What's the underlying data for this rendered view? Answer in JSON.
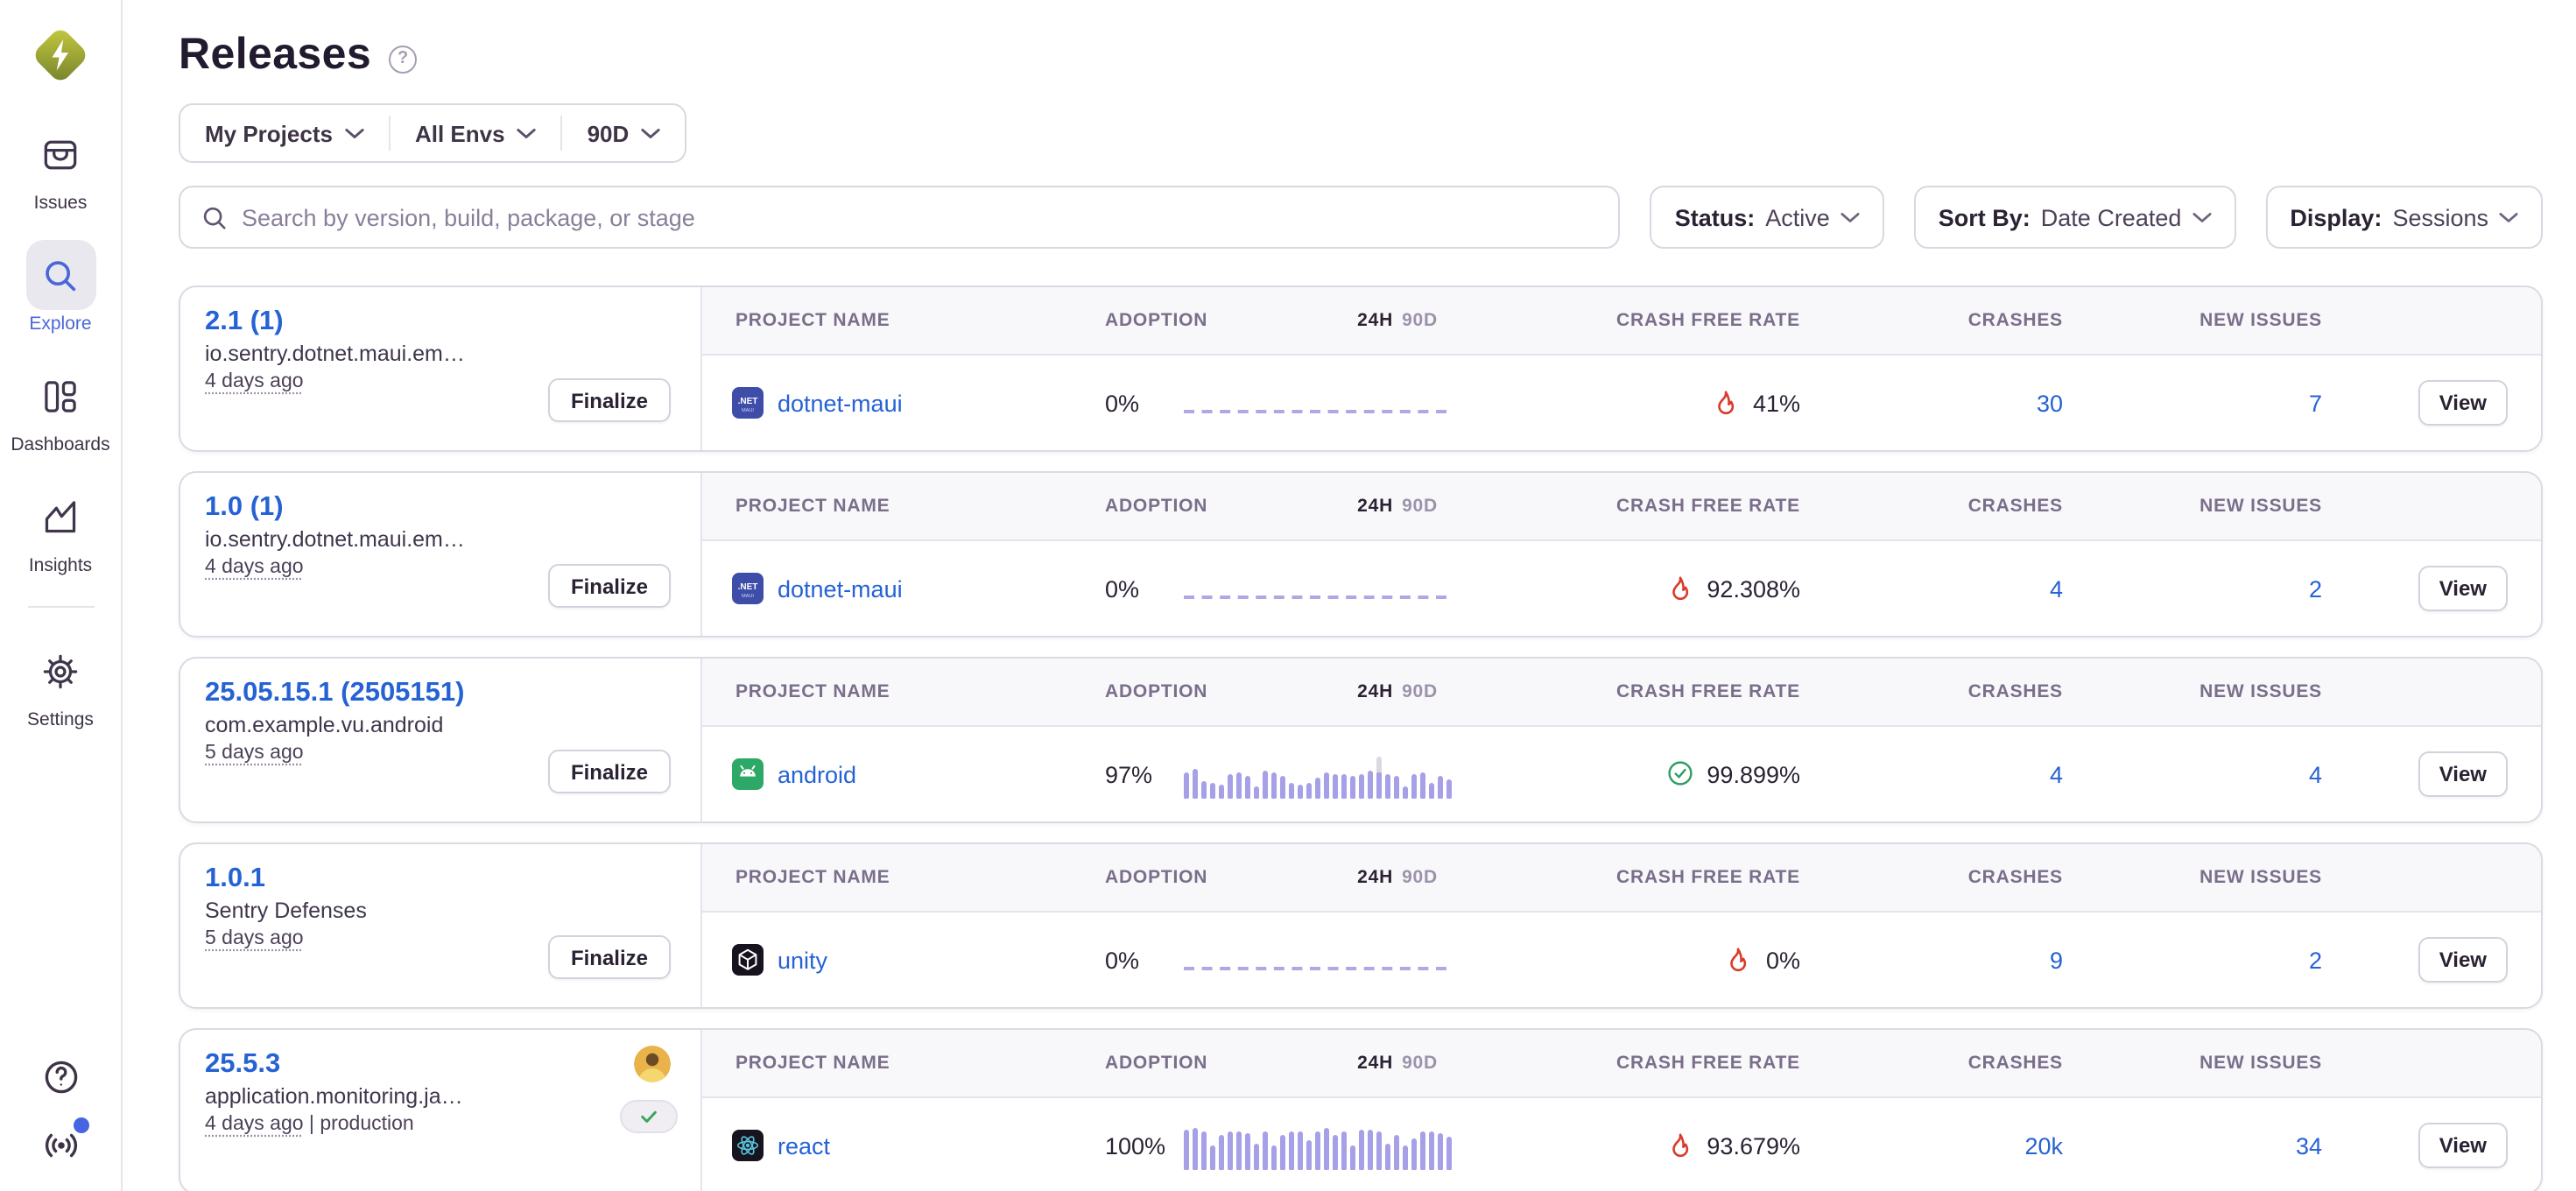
{
  "app": {
    "name": "Sentry",
    "logo_icon": "sentry-logo"
  },
  "sidebar": {
    "items": [
      {
        "label": "Issues",
        "icon": "issues-icon",
        "active": false
      },
      {
        "label": "Explore",
        "icon": "magnifier-icon",
        "active": true
      },
      {
        "label": "Dashboards",
        "icon": "dashboards-icon",
        "active": false
      },
      {
        "label": "Insights",
        "icon": "insights-icon",
        "active": false
      },
      {
        "label": "Settings",
        "icon": "gear-icon",
        "active": false
      }
    ],
    "footer": [
      {
        "icon": "help-icon",
        "has_notification_dot": false
      },
      {
        "icon": "broadcast-icon",
        "has_notification_dot": true
      }
    ]
  },
  "page": {
    "title": "Releases",
    "title_help_icon": "question-circle-icon"
  },
  "scope_filters": {
    "projects": "My Projects",
    "environments": "All Envs",
    "date_range": "90D"
  },
  "search": {
    "placeholder": "Search by version, build, package, or stage",
    "icon": "search-icon"
  },
  "controls": [
    {
      "label": "Status:",
      "value": "Active"
    },
    {
      "label": "Sort By:",
      "value": "Date Created"
    },
    {
      "label": "Display:",
      "value": "Sessions"
    }
  ],
  "table_headers": {
    "project": "PROJECT NAME",
    "adoption": "ADOPTION",
    "range_24h": "24H",
    "range_90d": "90D",
    "crash_free": "CRASH FREE RATE",
    "crashes": "CRASHES",
    "new_issues": "NEW ISSUES"
  },
  "labels": {
    "view": "View",
    "finalize": "Finalize",
    "env_separator": " | "
  },
  "colors": {
    "link_blue": "#2562D4",
    "active_nav_blue": "#4A67D8",
    "fire_red": "#DA3B2B",
    "success_green": "#2F9E63",
    "bar_purple": "#A6A0E8",
    "bar_highlight_gray": "#DCD8E2",
    "notification_blue": "#4765E0"
  },
  "releases": [
    {
      "version": "2.1 (1)",
      "package": "io.sentry.dotnet.maui.em…",
      "created": "4 days ago",
      "environment": "",
      "action": "finalize",
      "project": {
        "name": "dotnet-maui",
        "icon": "dotnet-maui-icon"
      },
      "adoption": "0%",
      "chart": {
        "type": "dashed"
      },
      "crash_free": {
        "value": "41%",
        "icon": "fire-icon"
      },
      "crashes": "30",
      "new_issues": "7"
    },
    {
      "version": "1.0 (1)",
      "package": "io.sentry.dotnet.maui.em…",
      "created": "4 days ago",
      "environment": "",
      "action": "finalize",
      "project": {
        "name": "dotnet-maui",
        "icon": "dotnet-maui-icon"
      },
      "adoption": "0%",
      "chart": {
        "type": "dashed"
      },
      "crash_free": {
        "value": "92.308%",
        "icon": "fire-icon"
      },
      "crashes": "4",
      "new_issues": "2"
    },
    {
      "version": "25.05.15.1 (2505151)",
      "package": "com.example.vu.android",
      "created": "5 days ago",
      "environment": "",
      "action": "finalize",
      "project": {
        "name": "android",
        "icon": "android-icon"
      },
      "adoption": "97%",
      "chart": {
        "type": "bars",
        "highlight_index": 22,
        "highlight_height": 24,
        "values": [
          15,
          17,
          10,
          9,
          8,
          14,
          15,
          13,
          7,
          16,
          15,
          13,
          9,
          8,
          9,
          12,
          15,
          14,
          14,
          13,
          14,
          16,
          15,
          14,
          13,
          7,
          14,
          15,
          9,
          13,
          11
        ]
      },
      "crash_free": {
        "value": "99.899%",
        "icon": "check-circle-icon"
      },
      "crashes": "4",
      "new_issues": "4"
    },
    {
      "version": "1.0.1",
      "package": "Sentry Defenses",
      "created": "5 days ago",
      "environment": "",
      "action": "finalize",
      "project": {
        "name": "unity",
        "icon": "unity-icon"
      },
      "adoption": "0%",
      "chart": {
        "type": "dashed"
      },
      "crash_free": {
        "value": "0%",
        "icon": "fire-icon"
      },
      "crashes": "9",
      "new_issues": "2"
    },
    {
      "version": "25.5.3",
      "package": "application.monitoring.ja…",
      "created": "4 days ago",
      "environment": "production",
      "action": "finalized",
      "project": {
        "name": "react",
        "icon": "react-icon"
      },
      "adoption": "100%",
      "chart": {
        "type": "bars",
        "values": [
          23,
          24,
          22,
          14,
          20,
          22,
          22,
          21,
          15,
          22,
          14,
          20,
          22,
          22,
          17,
          22,
          24,
          20,
          22,
          14,
          23,
          23,
          22,
          15,
          20,
          14,
          18,
          22,
          22,
          21,
          19
        ]
      },
      "crash_free": {
        "value": "93.679%",
        "icon": "fire-icon"
      },
      "crashes": "20k",
      "new_issues": "34"
    }
  ]
}
